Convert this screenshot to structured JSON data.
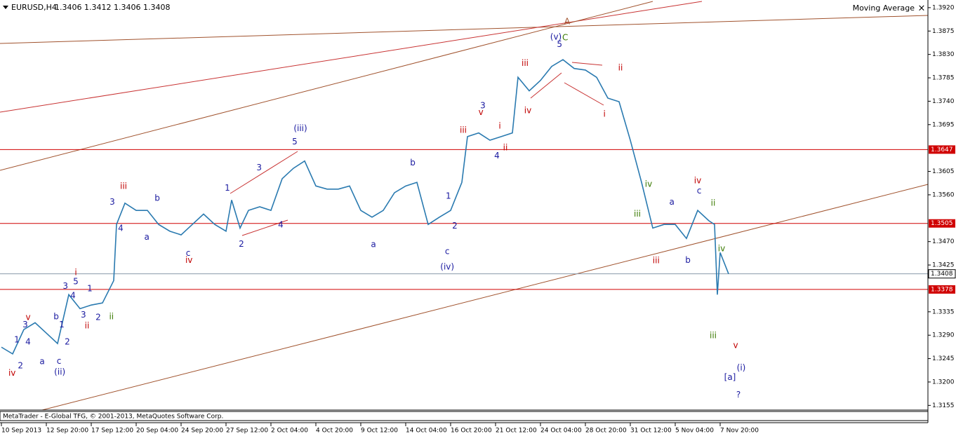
{
  "header": {
    "symbol": "EURUSD,H4",
    "ohlc": "1.3406 1.3412 1.3406 1.3408",
    "indicator": "Moving Average",
    "close": "×"
  },
  "footer": "MetaTrader - E-Global TFG, © 2001-2013, MetaQuotes Software Corp.",
  "chart_data": {
    "type": "line",
    "x": [
      0,
      4,
      8,
      12,
      16,
      20,
      24,
      28,
      32,
      36,
      40,
      41,
      44,
      48,
      52,
      56,
      60,
      64,
      68,
      72,
      76,
      80,
      82,
      85,
      88,
      92,
      96,
      100,
      104,
      108,
      112,
      116,
      120,
      124,
      128,
      132,
      136,
      140,
      144,
      148,
      152,
      156,
      160,
      164,
      166,
      170,
      174,
      178,
      182,
      184,
      188,
      192,
      196,
      200,
      204,
      208,
      212,
      216,
      220,
      224,
      228,
      232,
      236,
      240,
      244,
      248,
      252,
      254,
      255,
      256,
      259
    ],
    "series": [
      {
        "name": "EURUSD",
        "color": "#2a7ab0",
        "values": [
          1.3267,
          1.3254,
          1.3301,
          1.3314,
          1.3294,
          1.3274,
          1.3368,
          1.3341,
          1.3348,
          1.3352,
          1.3395,
          1.3503,
          1.3544,
          1.353,
          1.353,
          1.3503,
          1.349,
          1.3483,
          1.3503,
          1.3523,
          1.3503,
          1.349,
          1.355,
          1.3496,
          1.353,
          1.3537,
          1.353,
          1.3591,
          1.3611,
          1.3625,
          1.3577,
          1.3571,
          1.3571,
          1.3577,
          1.353,
          1.3517,
          1.353,
          1.3564,
          1.3577,
          1.3584,
          1.3503,
          1.3517,
          1.353,
          1.3584,
          1.3672,
          1.3679,
          1.3665,
          1.3672,
          1.3679,
          1.3786,
          1.376,
          1.378,
          1.3807,
          1.382,
          1.3803,
          1.38,
          1.3786,
          1.3746,
          1.3739,
          1.3665,
          1.3584,
          1.3496,
          1.3503,
          1.3503,
          1.3476,
          1.353,
          1.351,
          1.3503,
          1.3368,
          1.3449,
          1.3408
        ]
      }
    ],
    "xlim": [
      0,
      330
    ],
    "xticks": [
      {
        "value": 0,
        "label": "10 Sep 2013"
      },
      {
        "value": 16,
        "label": "12 Sep 20:00"
      },
      {
        "value": 32,
        "label": "17 Sep 12:00"
      },
      {
        "value": 48,
        "label": "20 Sep 04:00"
      },
      {
        "value": 64,
        "label": "24 Sep 20:00"
      },
      {
        "value": 80,
        "label": "27 Sep 12:00"
      },
      {
        "value": 96,
        "label": "2 Oct 04:00"
      },
      {
        "value": 112,
        "label": "4 Oct 20:00"
      },
      {
        "value": 128,
        "label": "9 Oct 12:00"
      },
      {
        "value": 144,
        "label": "14 Oct 04:00"
      },
      {
        "value": 160,
        "label": "16 Oct 20:00"
      },
      {
        "value": 176,
        "label": "21 Oct 12:00"
      },
      {
        "value": 192,
        "label": "24 Oct 04:00"
      },
      {
        "value": 208,
        "label": "28 Oct 20:00"
      },
      {
        "value": 224,
        "label": "31 Oct 12:00"
      },
      {
        "value": 240,
        "label": "5 Nov 04:00"
      },
      {
        "value": 256,
        "label": "7 Nov 20:00"
      }
    ],
    "ylim": [
      1.3146,
      1.3932
    ],
    "yticks": [
      {
        "value": 1.392,
        "label": "1.3920"
      },
      {
        "value": 1.3875,
        "label": "1.3875"
      },
      {
        "value": 1.383,
        "label": "1.3830"
      },
      {
        "value": 1.3785,
        "label": "1.3785"
      },
      {
        "value": 1.374,
        "label": "1.3740"
      },
      {
        "value": 1.3695,
        "label": "1.3695"
      },
      {
        "value": 1.3605,
        "label": "1.3605"
      },
      {
        "value": 1.356,
        "label": "1.3560"
      },
      {
        "value": 1.347,
        "label": "1.3470"
      },
      {
        "value": 1.3425,
        "label": "1.3425"
      },
      {
        "value": 1.3335,
        "label": "1.3335"
      },
      {
        "value": 1.329,
        "label": "1.3290"
      },
      {
        "value": 1.3245,
        "label": "1.3245"
      },
      {
        "value": 1.32,
        "label": "1.3200"
      },
      {
        "value": 1.3155,
        "label": "1.3155"
      }
    ],
    "levels": [
      1.3647,
      1.3505,
      1.3378
    ],
    "level_color": "#d00000",
    "current_price": 1.3408,
    "annotations": [
      {
        "text": "iv",
        "x": 3.8,
        "y": 1.3217,
        "color": "#c00000"
      },
      {
        "text": "2",
        "x": 6.8,
        "y": 1.3231,
        "color": "#1a1aa0"
      },
      {
        "text": "1",
        "x": 5.5,
        "y": 1.3281,
        "color": "#1a1aa0"
      },
      {
        "text": "3",
        "x": 8.5,
        "y": 1.331,
        "color": "#1a1aa0"
      },
      {
        "text": "v",
        "x": 9.5,
        "y": 1.3324,
        "color": "#c00000"
      },
      {
        "text": "4",
        "x": 9.5,
        "y": 1.3277,
        "color": "#1a1aa0"
      },
      {
        "text": "a",
        "x": 14.5,
        "y": 1.3239,
        "color": "#1a1aa0"
      },
      {
        "text": "b",
        "x": 19.5,
        "y": 1.3325,
        "color": "#1a1aa0"
      },
      {
        "text": "c",
        "x": 20.5,
        "y": 1.324,
        "color": "#1a1aa0"
      },
      {
        "text": "(ii)",
        "x": 20.8,
        "y": 1.3219,
        "color": "#1a1aa0"
      },
      {
        "text": "1",
        "x": 21.5,
        "y": 1.331,
        "color": "#1a1aa0"
      },
      {
        "text": "2",
        "x": 23.5,
        "y": 1.3277,
        "color": "#1a1aa0"
      },
      {
        "text": "3",
        "x": 22.8,
        "y": 1.3384,
        "color": "#1a1aa0"
      },
      {
        "text": "5",
        "x": 26.5,
        "y": 1.3393,
        "color": "#1a1aa0"
      },
      {
        "text": "i",
        "x": 26.5,
        "y": 1.341,
        "color": "#c00000"
      },
      {
        "text": "4",
        "x": 25.5,
        "y": 1.3366,
        "color": "#1a1aa0"
      },
      {
        "text": "1",
        "x": 31.5,
        "y": 1.3379,
        "color": "#1a1aa0"
      },
      {
        "text": "3",
        "x": 29.2,
        "y": 1.3329,
        "color": "#1a1aa0"
      },
      {
        "text": "ii",
        "x": 30.5,
        "y": 1.3308,
        "color": "#c00000"
      },
      {
        "text": "2",
        "x": 34.5,
        "y": 1.3324,
        "color": "#1a1aa0"
      },
      {
        "text": "ii",
        "x": 39.2,
        "y": 1.3325,
        "color": "#3a7a00"
      },
      {
        "text": "iii",
        "x": 43.5,
        "y": 1.3576,
        "color": "#c00000"
      },
      {
        "text": "3",
        "x": 39.5,
        "y": 1.3546,
        "color": "#1a1aa0"
      },
      {
        "text": "4",
        "x": 42.5,
        "y": 1.3495,
        "color": "#1a1aa0"
      },
      {
        "text": "b",
        "x": 55.5,
        "y": 1.3553,
        "color": "#1a1aa0"
      },
      {
        "text": "a",
        "x": 51.8,
        "y": 1.3478,
        "color": "#1a1aa0"
      },
      {
        "text": "c",
        "x": 66.5,
        "y": 1.3447,
        "color": "#1a1aa0"
      },
      {
        "text": "iv",
        "x": 66.8,
        "y": 1.3434,
        "color": "#c00000"
      },
      {
        "text": "1",
        "x": 80.5,
        "y": 1.3573,
        "color": "#1a1aa0"
      },
      {
        "text": "3",
        "x": 91.8,
        "y": 1.3612,
        "color": "#1a1aa0"
      },
      {
        "text": "5",
        "x": 104.5,
        "y": 1.3662,
        "color": "#1a1aa0"
      },
      {
        "text": "(iii)",
        "x": 106.5,
        "y": 1.3687,
        "color": "#1a1aa0"
      },
      {
        "text": "2",
        "x": 85.5,
        "y": 1.3465,
        "color": "#1a1aa0"
      },
      {
        "text": "4",
        "x": 99.5,
        "y": 1.3502,
        "color": "#1a1aa0"
      },
      {
        "text": "b",
        "x": 146.5,
        "y": 1.3621,
        "color": "#1a1aa0"
      },
      {
        "text": "a",
        "x": 132.5,
        "y": 1.3464,
        "color": "#1a1aa0"
      },
      {
        "text": "1",
        "x": 159.2,
        "y": 1.3557,
        "color": "#1a1aa0"
      },
      {
        "text": "2",
        "x": 161.5,
        "y": 1.35,
        "color": "#1a1aa0"
      },
      {
        "text": "c",
        "x": 158.8,
        "y": 1.3451,
        "color": "#1a1aa0"
      },
      {
        "text": "(iv)",
        "x": 158.8,
        "y": 1.3421,
        "color": "#1a1aa0"
      },
      {
        "text": "iii",
        "x": 164.5,
        "y": 1.3684,
        "color": "#c00000"
      },
      {
        "text": "v",
        "x": 170.8,
        "y": 1.3718,
        "color": "#c00000"
      },
      {
        "text": "3",
        "x": 171.5,
        "y": 1.3731,
        "color": "#1a1aa0"
      },
      {
        "text": "i",
        "x": 177.5,
        "y": 1.3692,
        "color": "#c00000"
      },
      {
        "text": "4",
        "x": 176.5,
        "y": 1.3635,
        "color": "#1a1aa0"
      },
      {
        "text": "ii",
        "x": 179.5,
        "y": 1.365,
        "color": "#c00000"
      },
      {
        "text": "iii",
        "x": 186.5,
        "y": 1.3813,
        "color": "#c00000"
      },
      {
        "text": "iv",
        "x": 187.5,
        "y": 1.3722,
        "color": "#c00000"
      },
      {
        "text": "(v)",
        "x": 197.5,
        "y": 1.3863,
        "color": "#1a1aa0"
      },
      {
        "text": "5",
        "x": 198.8,
        "y": 1.3849,
        "color": "#1a1aa0"
      },
      {
        "text": "A",
        "x": 201.5,
        "y": 1.3893,
        "color": "#a0522d"
      },
      {
        "text": "C",
        "x": 200.8,
        "y": 1.3862,
        "color": "#3a7a00"
      },
      {
        "text": "ii",
        "x": 220.5,
        "y": 1.3804,
        "color": "#c00000"
      },
      {
        "text": "i",
        "x": 214.8,
        "y": 1.3715,
        "color": "#c00000"
      },
      {
        "text": "iv",
        "x": 230.5,
        "y": 1.358,
        "color": "#3a7a00"
      },
      {
        "text": "iii",
        "x": 226.5,
        "y": 1.3523,
        "color": "#3a7a00"
      },
      {
        "text": "iii",
        "x": 233.2,
        "y": 1.3433,
        "color": "#c00000"
      },
      {
        "text": "a",
        "x": 238.8,
        "y": 1.3546,
        "color": "#1a1aa0"
      },
      {
        "text": "iv",
        "x": 248,
        "y": 1.3587,
        "color": "#c00000"
      },
      {
        "text": "c",
        "x": 248.5,
        "y": 1.3567,
        "color": "#1a1aa0"
      },
      {
        "text": "ii",
        "x": 253.5,
        "y": 1.3544,
        "color": "#3a7a00"
      },
      {
        "text": "b",
        "x": 244.5,
        "y": 1.3434,
        "color": "#1a1aa0"
      },
      {
        "text": "iv",
        "x": 256.5,
        "y": 1.3456,
        "color": "#3a7a00"
      },
      {
        "text": "iii",
        "x": 253.5,
        "y": 1.3289,
        "color": "#3a7a00"
      },
      {
        "text": "v",
        "x": 261.5,
        "y": 1.327,
        "color": "#c00000"
      },
      {
        "text": "[a]",
        "x": 259.5,
        "y": 1.3209,
        "color": "#1a1aa0"
      },
      {
        "text": "(i)",
        "x": 263.5,
        "y": 1.3227,
        "color": "#1a1aa0"
      },
      {
        "text": "?",
        "x": 262.5,
        "y": 1.3175,
        "color": "#1a1aa0"
      }
    ]
  }
}
